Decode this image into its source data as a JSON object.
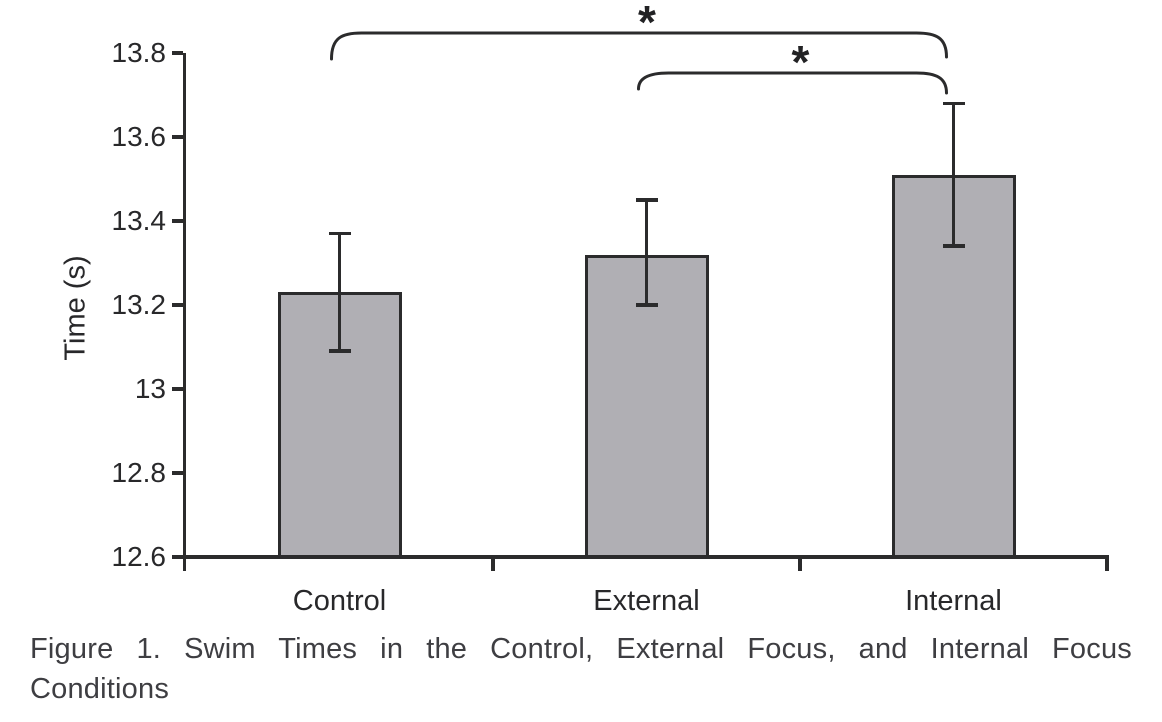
{
  "figure": {
    "caption_line1": "Figure 1. Swim Times in the Control, External Focus, and Internal Focus",
    "caption_line2": "Conditions"
  },
  "chart_data": {
    "type": "bar",
    "title": "",
    "xlabel": "",
    "ylabel": "Time (s)",
    "categories": [
      "Control",
      "External",
      "Internal"
    ],
    "values": [
      13.23,
      13.32,
      13.51
    ],
    "error_upper": [
      13.37,
      13.45,
      13.68
    ],
    "error_lower": [
      13.09,
      13.2,
      13.34
    ],
    "ylim": [
      12.6,
      13.8
    ],
    "yticks": [
      "13.8",
      "13.6",
      "13.4",
      "13.2",
      "13",
      "12.8",
      "12.6"
    ],
    "grid": false,
    "legend": false,
    "bar_color": "#b0afb4",
    "bar_border_color": "#2b2b2c",
    "axis_color": "#2b2b2c",
    "text_color": "#28282a",
    "significance_brackets": [
      {
        "from": "Control",
        "to": "Internal",
        "label": "*"
      },
      {
        "from": "External",
        "to": "Internal",
        "label": "*"
      }
    ]
  }
}
